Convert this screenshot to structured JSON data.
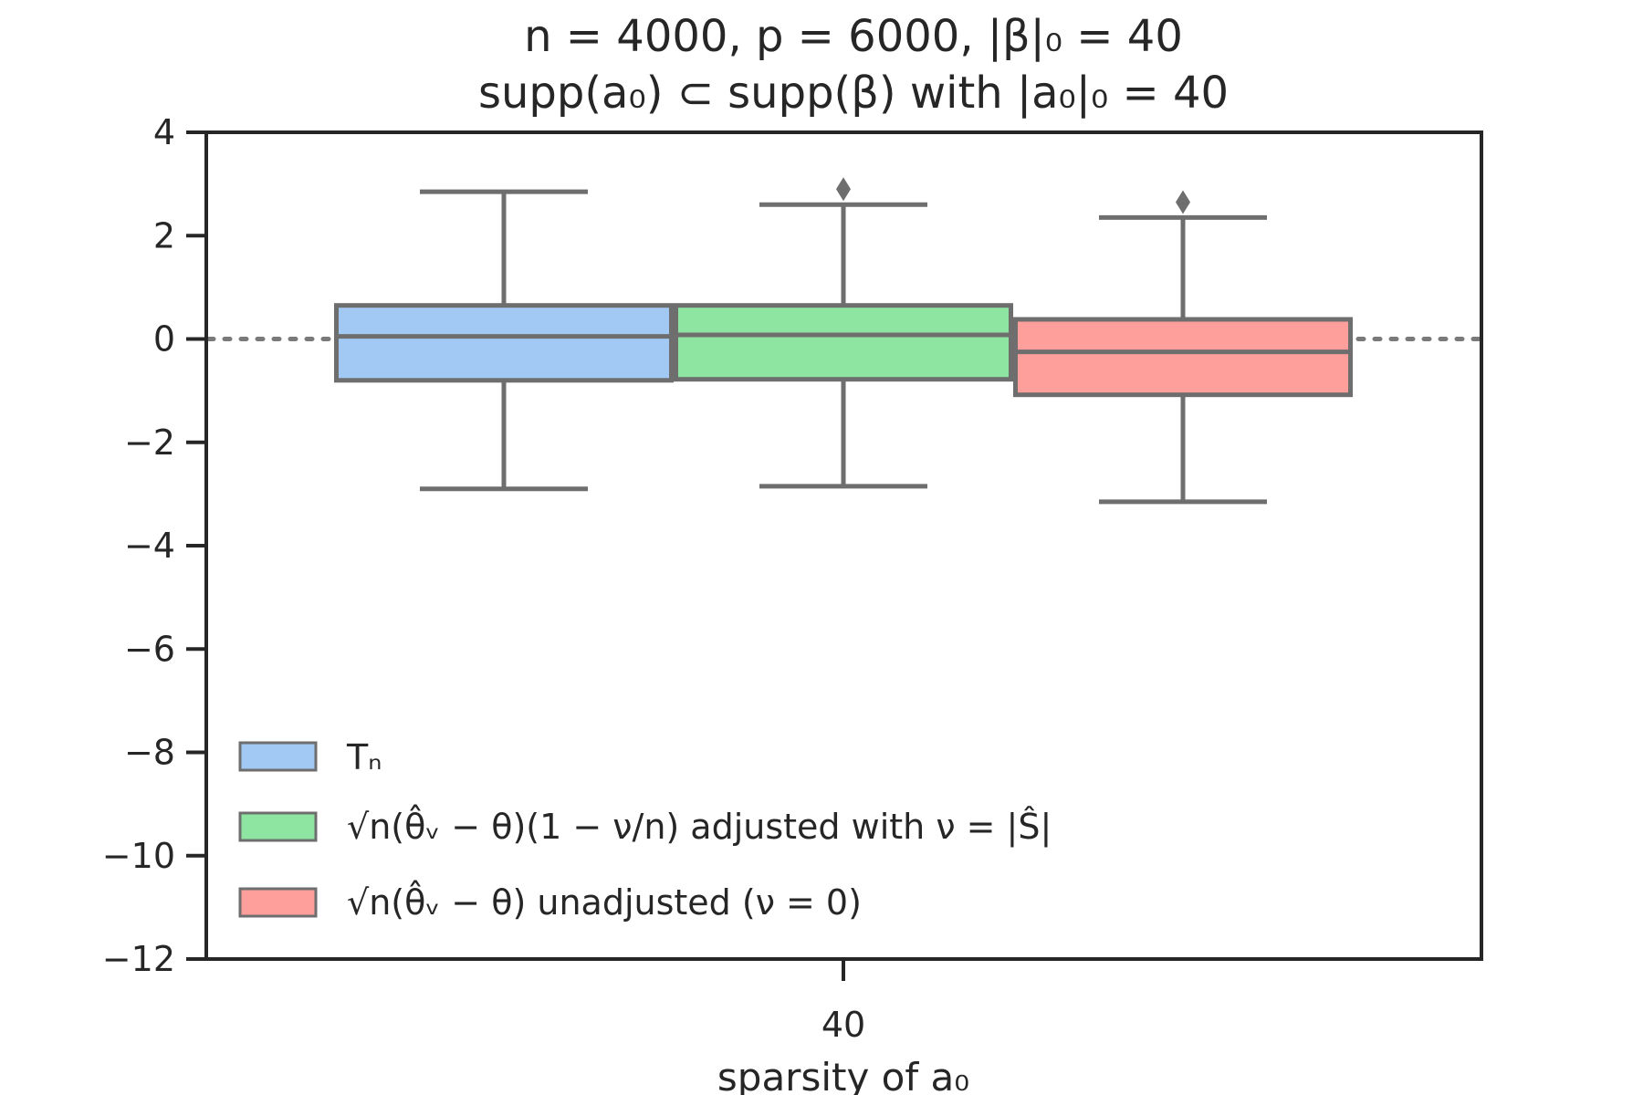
{
  "chart_data": {
    "type": "box",
    "title": "n = 4000, p = 6000, |β|₀ = 40",
    "subtitle": "supp(a₀) ⊂ supp(β) with |a₀|₀ = 40",
    "xlabel": "sparsity of a₀",
    "ylabel": "",
    "categories": [
      "40"
    ],
    "ylim": [
      -12,
      4
    ],
    "yticks": [
      4,
      2,
      0,
      -2,
      -4,
      -6,
      -8,
      -10,
      -12
    ],
    "ytick_labels": [
      "4",
      "2",
      "0",
      "−2",
      "−4",
      "−6",
      "−8",
      "−10",
      "−12"
    ],
    "reference_line": {
      "y": 0,
      "style": "dotted"
    },
    "grid": false,
    "legend_position": "lower-left",
    "series": [
      {
        "name": "Tₙ",
        "color": "#a1c9f4",
        "whisker_low": -2.9,
        "q1": -0.8,
        "median": 0.05,
        "q3": 0.65,
        "whisker_high": 2.85,
        "outliers": []
      },
      {
        "name": "√n(θ̂ᵥ − θ)(1 − ν/n) adjusted with ν = |Ŝ|",
        "color": "#8de5a1",
        "whisker_low": -2.85,
        "q1": -0.78,
        "median": 0.08,
        "q3": 0.65,
        "whisker_high": 2.6,
        "outliers": [
          2.9
        ]
      },
      {
        "name": "√n(θ̂ᵥ − θ) unadjusted (ν = 0)",
        "color": "#ff9f9b",
        "whisker_low": -3.15,
        "q1": -1.08,
        "median": -0.25,
        "q3": 0.38,
        "whisker_high": 2.35,
        "outliers": [
          2.65
        ]
      }
    ]
  }
}
